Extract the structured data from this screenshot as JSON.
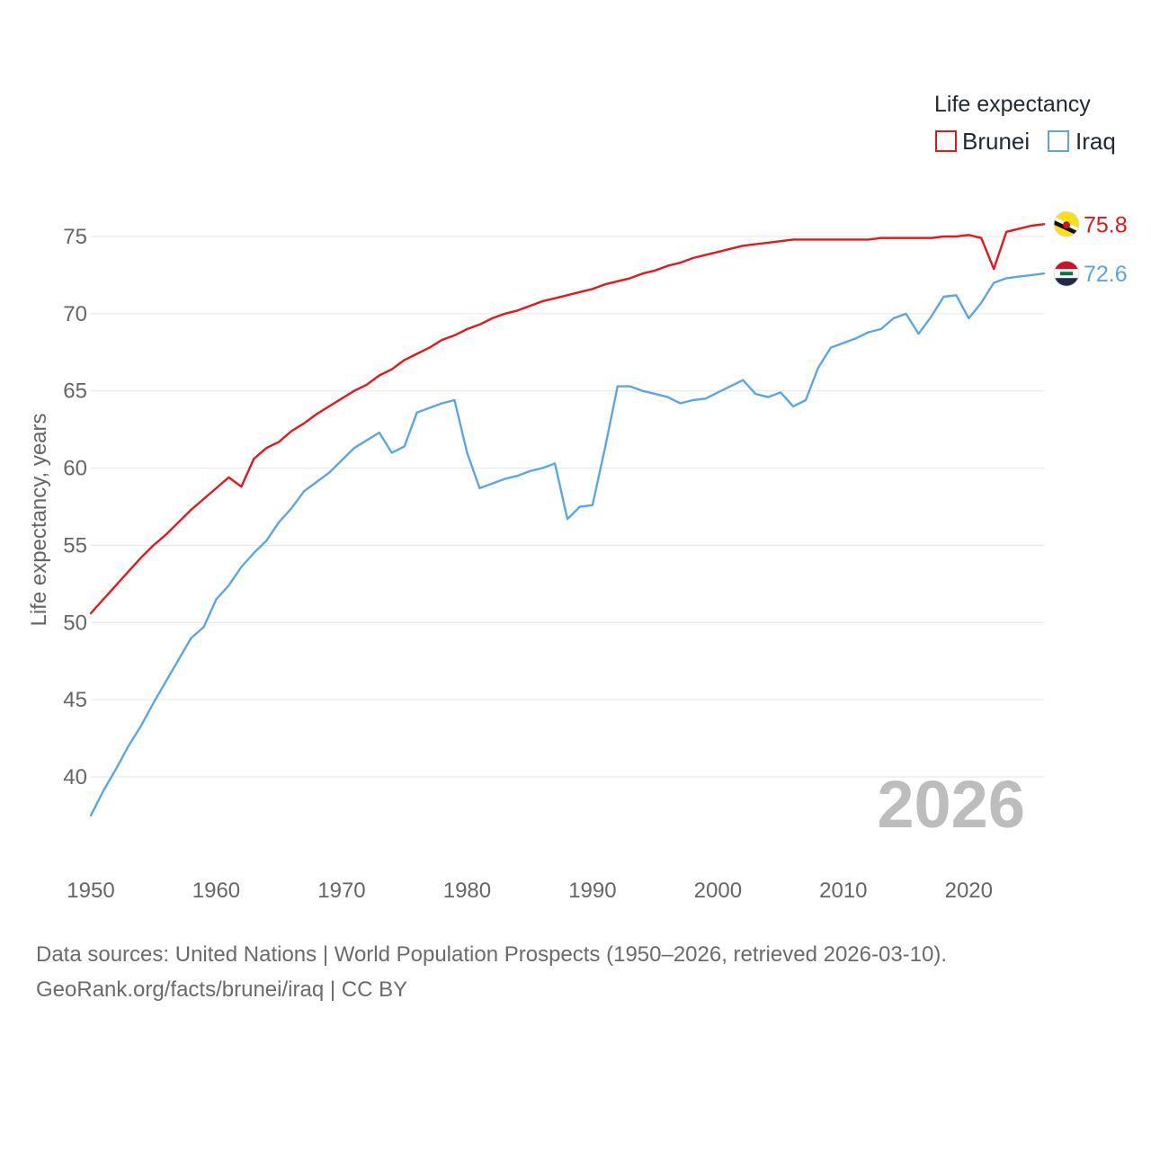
{
  "chart_data": {
    "type": "line",
    "legend_title": "Life expectancy",
    "ylabel": "Life expectancy, years",
    "xlabel": "",
    "xlim": [
      1950,
      2026
    ],
    "ylim": [
      35,
      78
    ],
    "x_ticks": [
      "1950",
      "1960",
      "1970",
      "1980",
      "1990",
      "2000",
      "2010",
      "2020"
    ],
    "y_ticks": [
      "40",
      "45",
      "50",
      "55",
      "60",
      "65",
      "70",
      "75"
    ],
    "current_year": "2026",
    "x": [
      1950,
      1951,
      1952,
      1953,
      1954,
      1955,
      1956,
      1957,
      1958,
      1959,
      1960,
      1961,
      1962,
      1963,
      1964,
      1965,
      1966,
      1967,
      1968,
      1969,
      1970,
      1971,
      1972,
      1973,
      1974,
      1975,
      1976,
      1977,
      1978,
      1979,
      1980,
      1981,
      1982,
      1983,
      1984,
      1985,
      1986,
      1987,
      1988,
      1989,
      1990,
      1991,
      1992,
      1993,
      1994,
      1995,
      1996,
      1997,
      1998,
      1999,
      2000,
      2001,
      2002,
      2003,
      2004,
      2005,
      2006,
      2007,
      2008,
      2009,
      2010,
      2011,
      2012,
      2013,
      2014,
      2015,
      2016,
      2017,
      2018,
      2019,
      2020,
      2021,
      2022,
      2023,
      2024,
      2025,
      2026
    ],
    "series": [
      {
        "name": "Brunei",
        "color": "#e8161b",
        "end_label": "75.8",
        "flag": "brunei-flag-icon",
        "values": [
          50.6,
          51.5,
          52.4,
          53.3,
          54.2,
          55.0,
          55.7,
          56.5,
          57.3,
          58.0,
          58.7,
          59.4,
          58.8,
          60.6,
          61.3,
          61.7,
          62.4,
          62.9,
          63.5,
          64.0,
          64.5,
          65.0,
          65.4,
          66.0,
          66.4,
          67.0,
          67.4,
          67.8,
          68.3,
          68.6,
          69.0,
          69.3,
          69.7,
          70.0,
          70.2,
          70.5,
          70.8,
          71.0,
          71.2,
          71.4,
          71.6,
          71.9,
          72.1,
          72.3,
          72.6,
          72.8,
          73.1,
          73.3,
          73.6,
          73.8,
          74.0,
          74.2,
          74.4,
          74.5,
          74.6,
          74.7,
          74.8,
          74.8,
          74.8,
          74.8,
          74.8,
          74.8,
          74.8,
          74.9,
          74.9,
          74.9,
          74.9,
          74.9,
          75.0,
          75.0,
          75.1,
          74.9,
          72.9,
          75.3,
          75.5,
          75.7,
          75.8
        ]
      },
      {
        "name": "Iraq",
        "color": "#5ba7e6",
        "end_label": "72.6",
        "flag": "iraq-flag-icon",
        "values": [
          37.5,
          39.1,
          40.5,
          42.0,
          43.3,
          44.8,
          46.2,
          47.6,
          49.0,
          49.7,
          51.5,
          52.4,
          53.6,
          54.5,
          55.3,
          56.5,
          57.4,
          58.5,
          59.1,
          59.7,
          60.5,
          61.3,
          61.8,
          62.3,
          61.0,
          61.4,
          63.6,
          63.9,
          64.2,
          64.4,
          61.0,
          58.7,
          59.0,
          59.3,
          59.5,
          59.8,
          60.0,
          60.3,
          56.7,
          57.5,
          57.6,
          61.3,
          65.3,
          65.3,
          65.0,
          64.8,
          64.6,
          64.2,
          64.4,
          64.5,
          64.9,
          65.3,
          65.7,
          64.8,
          64.6,
          64.9,
          64.0,
          64.4,
          66.5,
          67.8,
          68.1,
          68.4,
          68.8,
          69.0,
          69.7,
          70.0,
          68.7,
          69.8,
          71.1,
          71.2,
          69.7,
          70.7,
          72.0,
          72.3,
          72.4,
          72.5,
          72.6
        ]
      }
    ]
  },
  "footer": {
    "sources": "Data sources: United Nations | World Population Prospects (1950–2026, retrieved 2026-03-10).",
    "credit": "GeoRank.org/facts/brunei/iraq | CC BY"
  }
}
